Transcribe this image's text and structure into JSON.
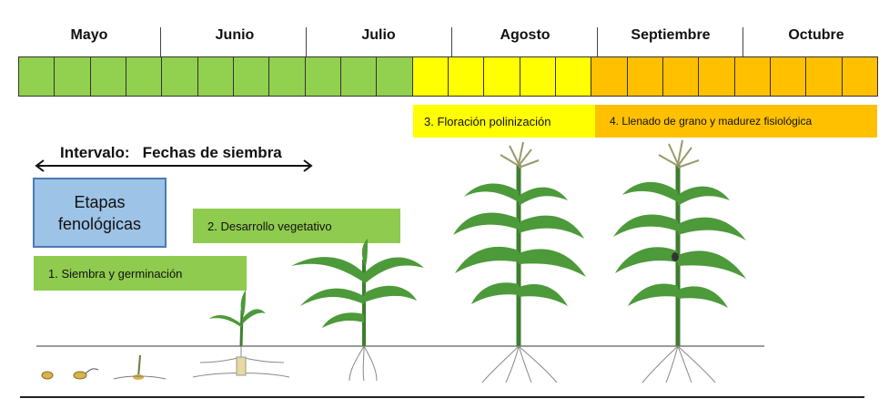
{
  "months": [
    "Mayo",
    "Junio",
    "Julio",
    "Agosto",
    "Septiembre",
    "Octubre"
  ],
  "colors": {
    "green": "#92d050",
    "yellow": "#ffff00",
    "orange": "#ffc000",
    "stage_green": "#8fcb4e",
    "stage_yellow": "#ffff00",
    "stage_orange": "#ffc000",
    "phase_box": "#9dc3e6",
    "plant": "#4c9a3a"
  },
  "timeline": {
    "weeks_per_month": 4,
    "green_weeks": 11,
    "yellow_weeks": 5,
    "orange_weeks": 8
  },
  "interval_label": "Intervalo:   Fechas de siembra",
  "phase_box": {
    "line1": "Etapas",
    "line2": "fenológicas"
  },
  "stages": {
    "stage1": "1. Siembra y germinación",
    "stage2": "2. Desarrollo vegetativo",
    "stage3": "3. Floración polinización",
    "stage4": "4. Llenado de grano y  madurez fisiológica"
  }
}
